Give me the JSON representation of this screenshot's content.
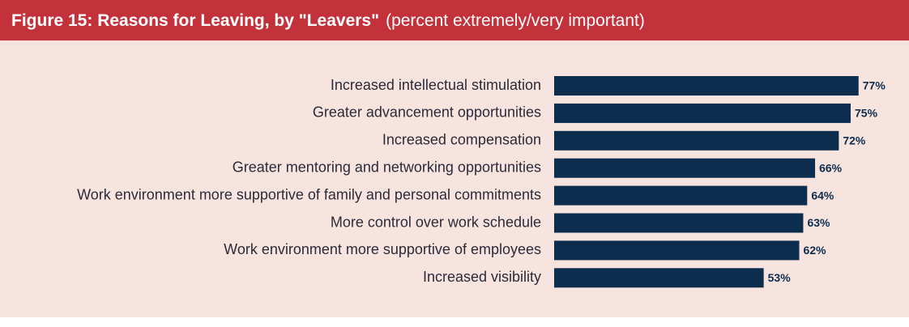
{
  "chart_data": {
    "type": "bar",
    "orientation": "horizontal",
    "title": "Figure 15: Reasons for Leaving, by \"Leavers\"",
    "subtitle": "(percent extremely/very important)",
    "categories": [
      "Increased intellectual stimulation",
      "Greater advancement opportunities",
      "Increased compensation",
      "Greater mentoring and networking opportunities",
      "Work environment more supportive of family and personal commitments",
      "More control over work schedule",
      "Work environment more supportive of employees",
      "Increased visibility"
    ],
    "values": [
      77,
      75,
      72,
      66,
      64,
      63,
      62,
      53
    ],
    "value_labels": [
      "77%",
      "75%",
      "72%",
      "66%",
      "64%",
      "63%",
      "62%",
      "53%"
    ],
    "color": "#0d2d4f"
  }
}
